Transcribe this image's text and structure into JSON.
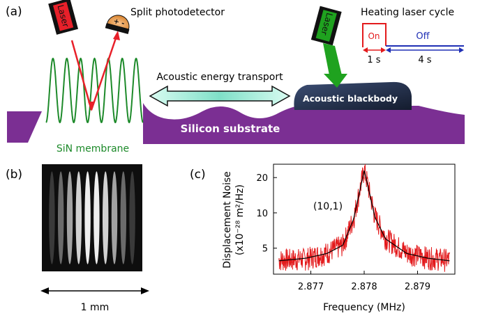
{
  "panel_a": {
    "label": "(a)",
    "photodetector_label": "Split photodetector",
    "photodetector_signs": "+ -",
    "laser_left_label": "Laser",
    "laser_right_label": "Laser",
    "heating_cycle_title": "Heating laser cycle",
    "on_label": "On",
    "off_label": "Off",
    "on_duration": "1 s",
    "off_duration": "4 s",
    "transport_label": "Acoustic energy transport",
    "blackbody_label": "Acoustic blackbody",
    "substrate_label": "Silicon substrate",
    "membrane_label": "SiN membrane",
    "colors": {
      "laser_beam": "#e8202a",
      "heating_beam": "#1fa21f",
      "membrane": "#1d8a2a",
      "substrate": "#7b2f93",
      "blackbody": "#22304d",
      "on_color": "#e31a1c",
      "off_color": "#1f2fb5"
    }
  },
  "panel_b": {
    "label": "(b)",
    "scale_label": "1 mm"
  },
  "panel_c": {
    "label": "(c)",
    "annotation": "(10,1)",
    "chart_data": {
      "type": "line",
      "xlabel": "Frequency (MHz)",
      "ylabel_line1": "Displacement Noise",
      "ylabel_line2": "(x10⁻²⁸ m²/Hz)",
      "xlim": [
        2.8763,
        2.8797
      ],
      "ylim": [
        3.0,
        26.0
      ],
      "yscale": "log",
      "xticks": [
        "2.877",
        "2.878",
        "2.879"
      ],
      "xtick_values": [
        2.877,
        2.878,
        2.879
      ],
      "yticks": [
        "5",
        "10",
        "20"
      ],
      "ytick_values": [
        5,
        10,
        20
      ],
      "series": [
        {
          "role": "measured",
          "color": "#e31a1c",
          "x": [
            2.8764,
            2.8769,
            2.8773,
            2.8776,
            2.8778,
            2.87795,
            2.878,
            2.87805,
            2.8782,
            2.8784,
            2.8788,
            2.8792,
            2.8796
          ],
          "y": [
            4.0,
            4.1,
            4.6,
            5.4,
            9.0,
            18.5,
            23.5,
            19.0,
            9.5,
            6.2,
            4.6,
            4.2,
            4.0
          ]
        },
        {
          "role": "fit",
          "color": "#000000",
          "x": [
            2.8764,
            2.8769,
            2.8773,
            2.8776,
            2.8778,
            2.87795,
            2.878,
            2.87805,
            2.8782,
            2.8784,
            2.8788,
            2.8792,
            2.8796
          ],
          "y": [
            3.9,
            4.1,
            4.5,
            5.3,
            8.8,
            18.0,
            23.0,
            18.5,
            9.2,
            6.0,
            4.5,
            4.1,
            3.9
          ]
        }
      ]
    }
  }
}
